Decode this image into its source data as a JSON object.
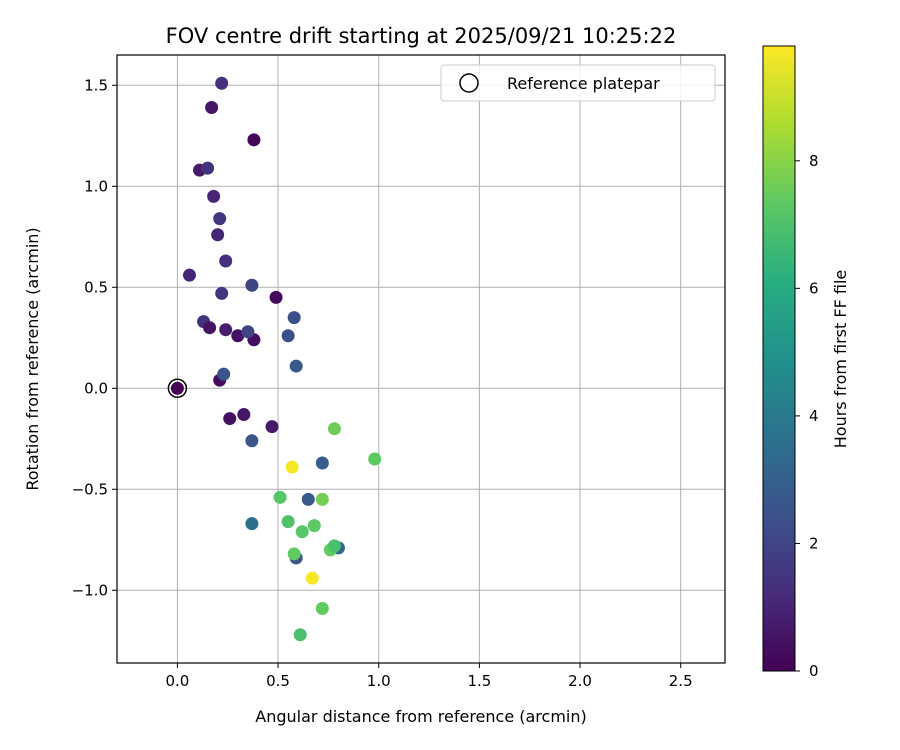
{
  "chart_data": {
    "type": "scatter",
    "title": "FOV centre drift starting at 2025/09/21 10:25:22",
    "xlabel": "Angular distance from reference (arcmin)",
    "ylabel": "Rotation from reference (arcmin)",
    "xlim": [
      -0.3,
      2.72
    ],
    "ylim": [
      -1.36,
      1.65
    ],
    "xticks": [
      0.0,
      0.5,
      1.0,
      1.5,
      2.0,
      2.5
    ],
    "xtick_labels": [
      "0.0",
      "0.5",
      "1.0",
      "1.5",
      "2.0",
      "2.5"
    ],
    "yticks": [
      -1.0,
      -0.5,
      0.0,
      0.5,
      1.0,
      1.5
    ],
    "ytick_labels": [
      "−1.0",
      "−0.5",
      "0.0",
      "0.5",
      "1.0",
      "1.5"
    ],
    "grid": true,
    "legend": {
      "placement": "top-right",
      "entries": [
        "Reference platepar"
      ]
    },
    "reference": {
      "x": 0.0,
      "y": 0.0
    },
    "colorbar": {
      "label": "Hours from first FF file",
      "min": 0,
      "max": 9.8,
      "ticks": [
        0,
        2,
        4,
        6,
        8
      ],
      "tick_labels": [
        "0",
        "2",
        "4",
        "6",
        "8"
      ],
      "colormap": "viridis"
    },
    "points": [
      {
        "x": 0.0,
        "y": 0.0,
        "c": 0.0
      },
      {
        "x": 0.06,
        "y": 0.56,
        "c": 1.0
      },
      {
        "x": 0.11,
        "y": 1.08,
        "c": 0.7
      },
      {
        "x": 0.15,
        "y": 1.09,
        "c": 1.4
      },
      {
        "x": 0.17,
        "y": 1.39,
        "c": 0.6
      },
      {
        "x": 0.18,
        "y": 0.95,
        "c": 1.0
      },
      {
        "x": 0.21,
        "y": 0.84,
        "c": 1.5
      },
      {
        "x": 0.2,
        "y": 0.76,
        "c": 1.0
      },
      {
        "x": 0.22,
        "y": 1.51,
        "c": 1.3
      },
      {
        "x": 0.24,
        "y": 0.63,
        "c": 1.3
      },
      {
        "x": 0.22,
        "y": 0.47,
        "c": 1.5
      },
      {
        "x": 0.13,
        "y": 0.33,
        "c": 1.4
      },
      {
        "x": 0.16,
        "y": 0.3,
        "c": 0.5
      },
      {
        "x": 0.24,
        "y": 0.29,
        "c": 0.8
      },
      {
        "x": 0.3,
        "y": 0.26,
        "c": 0.4
      },
      {
        "x": 0.38,
        "y": 0.24,
        "c": 0.4
      },
      {
        "x": 0.35,
        "y": 0.28,
        "c": 2.0
      },
      {
        "x": 0.37,
        "y": 0.51,
        "c": 2.0
      },
      {
        "x": 0.38,
        "y": 1.23,
        "c": 0.2
      },
      {
        "x": 0.49,
        "y": 0.45,
        "c": 0.3
      },
      {
        "x": 0.21,
        "y": 0.04,
        "c": 0.3
      },
      {
        "x": 0.23,
        "y": 0.07,
        "c": 2.5
      },
      {
        "x": 0.26,
        "y": -0.15,
        "c": 0.4
      },
      {
        "x": 0.33,
        "y": -0.13,
        "c": 0.6
      },
      {
        "x": 0.37,
        "y": -0.26,
        "c": 2.6
      },
      {
        "x": 0.47,
        "y": -0.19,
        "c": 0.7
      },
      {
        "x": 0.55,
        "y": 0.26,
        "c": 2.3
      },
      {
        "x": 0.58,
        "y": 0.35,
        "c": 2.4
      },
      {
        "x": 0.59,
        "y": 0.11,
        "c": 2.7
      },
      {
        "x": 0.72,
        "y": -0.37,
        "c": 2.9
      },
      {
        "x": 0.65,
        "y": -0.55,
        "c": 2.8
      },
      {
        "x": 0.37,
        "y": -0.67,
        "c": 3.6
      },
      {
        "x": 0.59,
        "y": -0.84,
        "c": 2.5
      },
      {
        "x": 0.8,
        "y": -0.79,
        "c": 3.2
      },
      {
        "x": 0.57,
        "y": -0.39,
        "c": 9.7
      },
      {
        "x": 0.67,
        "y": -0.94,
        "c": 9.7
      },
      {
        "x": 0.51,
        "y": -0.54,
        "c": 7.2
      },
      {
        "x": 0.55,
        "y": -0.66,
        "c": 7.0
      },
      {
        "x": 0.58,
        "y": -0.82,
        "c": 7.4
      },
      {
        "x": 0.62,
        "y": -0.71,
        "c": 7.2
      },
      {
        "x": 0.68,
        "y": -0.68,
        "c": 7.3
      },
      {
        "x": 0.72,
        "y": -0.55,
        "c": 7.7
      },
      {
        "x": 0.76,
        "y": -0.8,
        "c": 7.4
      },
      {
        "x": 0.78,
        "y": -0.78,
        "c": 6.9
      },
      {
        "x": 0.78,
        "y": -0.2,
        "c": 7.6
      },
      {
        "x": 0.98,
        "y": -0.35,
        "c": 7.3
      },
      {
        "x": 0.72,
        "y": -1.09,
        "c": 7.4
      },
      {
        "x": 0.61,
        "y": -1.22,
        "c": 6.9
      }
    ]
  }
}
